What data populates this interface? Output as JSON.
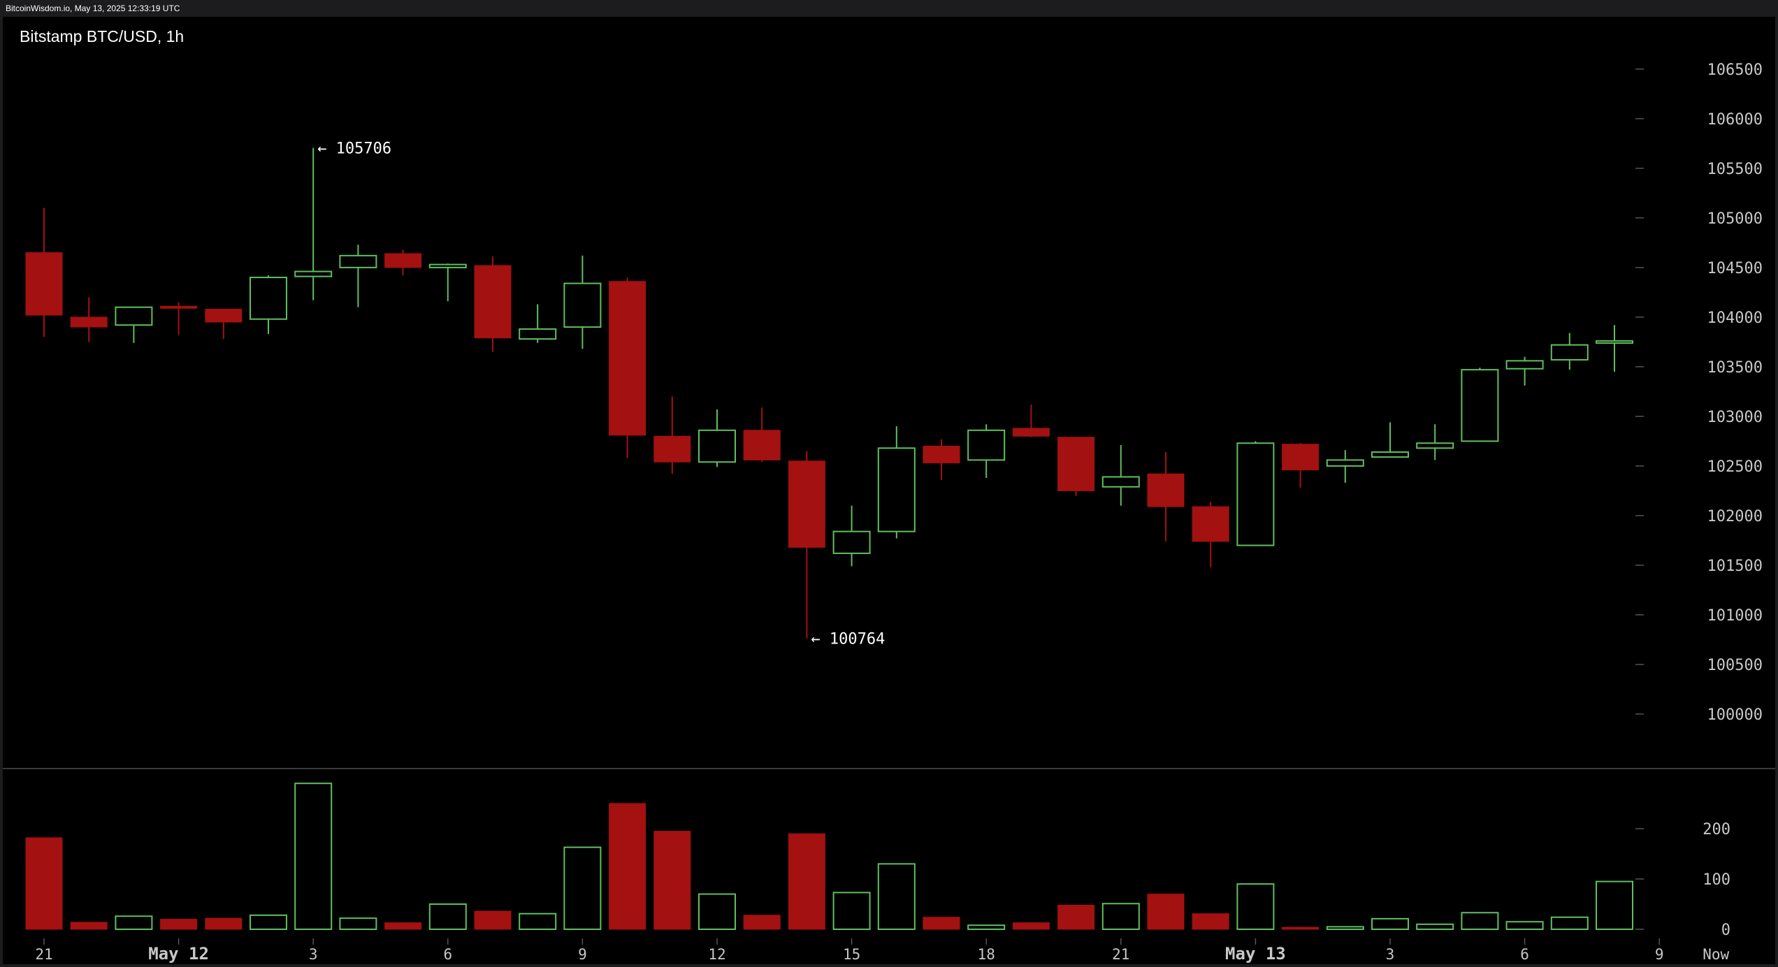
{
  "header": {
    "caption": "BitcoinWisdom.io, May 13, 2025 12:33:19 UTC"
  },
  "chart_data": {
    "type": "candlestick",
    "title": "Bitstamp BTC/USD, 1h",
    "colors": {
      "up": "#5fbf5f",
      "down": "#a31111",
      "background": "#000000",
      "text": "#ffffff",
      "axis": "#c8c8c8"
    },
    "price_axis": {
      "ticks": [
        100000,
        100500,
        101000,
        101500,
        102000,
        102500,
        103000,
        103500,
        104000,
        104500,
        105000,
        105500,
        106000,
        106500
      ],
      "range": [
        99500,
        106900
      ]
    },
    "volume_axis": {
      "ticks": [
        0,
        100,
        200
      ],
      "range": [
        0,
        300
      ]
    },
    "time_axis": [
      {
        "label": "21",
        "index": 0,
        "bold": false
      },
      {
        "label": "May 12",
        "index": 3,
        "bold": true
      },
      {
        "label": "3",
        "index": 6,
        "bold": false
      },
      {
        "label": "6",
        "index": 9,
        "bold": false
      },
      {
        "label": "9",
        "index": 12,
        "bold": false
      },
      {
        "label": "12",
        "index": 15,
        "bold": false
      },
      {
        "label": "15",
        "index": 18,
        "bold": false
      },
      {
        "label": "18",
        "index": 21,
        "bold": false
      },
      {
        "label": "21",
        "index": 24,
        "bold": false
      },
      {
        "label": "May 13",
        "index": 27,
        "bold": true
      },
      {
        "label": "3",
        "index": 30,
        "bold": false
      },
      {
        "label": "6",
        "index": 33,
        "bold": false
      },
      {
        "label": "9",
        "index": 36,
        "bold": false
      },
      {
        "label": "Now",
        "index": 37.2,
        "bold": false
      }
    ],
    "annotations": [
      {
        "text": "← 105706",
        "index": 6,
        "price": 105706
      },
      {
        "text": "← 100764",
        "index": 17,
        "price": 100764
      }
    ],
    "candles": [
      {
        "o": 104650,
        "h": 105100,
        "l": 103800,
        "c": 104020,
        "v": 182
      },
      {
        "o": 104000,
        "h": 104200,
        "l": 103750,
        "c": 103900,
        "v": 14
      },
      {
        "o": 103920,
        "h": 104100,
        "l": 103740,
        "c": 104100,
        "v": 26
      },
      {
        "o": 104110,
        "h": 104150,
        "l": 103820,
        "c": 104100,
        "v": 20
      },
      {
        "o": 104080,
        "h": 104080,
        "l": 103780,
        "c": 103950,
        "v": 22
      },
      {
        "o": 103980,
        "h": 104420,
        "l": 103830,
        "c": 104400,
        "v": 28
      },
      {
        "o": 104410,
        "h": 105706,
        "l": 104170,
        "c": 104460,
        "v": 290
      },
      {
        "o": 104500,
        "h": 104730,
        "l": 104100,
        "c": 104620,
        "v": 22
      },
      {
        "o": 104640,
        "h": 104680,
        "l": 104420,
        "c": 104500,
        "v": 13
      },
      {
        "o": 104500,
        "h": 104540,
        "l": 104160,
        "c": 104530,
        "v": 50
      },
      {
        "o": 104520,
        "h": 104610,
        "l": 103650,
        "c": 103790,
        "v": 36
      },
      {
        "o": 103780,
        "h": 104130,
        "l": 103740,
        "c": 103880,
        "v": 31
      },
      {
        "o": 103900,
        "h": 104620,
        "l": 103680,
        "c": 104340,
        "v": 163
      },
      {
        "o": 104360,
        "h": 104400,
        "l": 102580,
        "c": 102810,
        "v": 250
      },
      {
        "o": 102800,
        "h": 103200,
        "l": 102420,
        "c": 102540,
        "v": 195
      },
      {
        "o": 102540,
        "h": 103070,
        "l": 102490,
        "c": 102860,
        "v": 70
      },
      {
        "o": 102860,
        "h": 103090,
        "l": 102540,
        "c": 102560,
        "v": 28
      },
      {
        "o": 102550,
        "h": 102650,
        "l": 100764,
        "c": 101680,
        "v": 190
      },
      {
        "o": 101620,
        "h": 102100,
        "l": 101490,
        "c": 101840,
        "v": 73
      },
      {
        "o": 101840,
        "h": 102900,
        "l": 101770,
        "c": 102680,
        "v": 130
      },
      {
        "o": 102700,
        "h": 102770,
        "l": 102360,
        "c": 102530,
        "v": 24
      },
      {
        "o": 102560,
        "h": 102920,
        "l": 102380,
        "c": 102860,
        "v": 8
      },
      {
        "o": 102880,
        "h": 103120,
        "l": 102790,
        "c": 102800,
        "v": 13
      },
      {
        "o": 102790,
        "h": 102790,
        "l": 102200,
        "c": 102250,
        "v": 48
      },
      {
        "o": 102290,
        "h": 102710,
        "l": 102100,
        "c": 102390,
        "v": 51
      },
      {
        "o": 102420,
        "h": 102640,
        "l": 101740,
        "c": 102090,
        "v": 70
      },
      {
        "o": 102090,
        "h": 102140,
        "l": 101480,
        "c": 101740,
        "v": 31
      },
      {
        "o": 101700,
        "h": 102750,
        "l": 101700,
        "c": 102730,
        "v": 90
      },
      {
        "o": 102720,
        "h": 102730,
        "l": 102280,
        "c": 102460,
        "v": 4
      },
      {
        "o": 102500,
        "h": 102660,
        "l": 102330,
        "c": 102560,
        "v": 5
      },
      {
        "o": 102590,
        "h": 102940,
        "l": 102590,
        "c": 102640,
        "v": 21
      },
      {
        "o": 102680,
        "h": 102920,
        "l": 102560,
        "c": 102730,
        "v": 10
      },
      {
        "o": 102750,
        "h": 103490,
        "l": 102750,
        "c": 103470,
        "v": 33
      },
      {
        "o": 103480,
        "h": 103600,
        "l": 103310,
        "c": 103560,
        "v": 15
      },
      {
        "o": 103570,
        "h": 103840,
        "l": 103470,
        "c": 103720,
        "v": 24
      },
      {
        "o": 103750,
        "h": 103920,
        "l": 103450,
        "c": 103760,
        "v": 95
      }
    ]
  }
}
